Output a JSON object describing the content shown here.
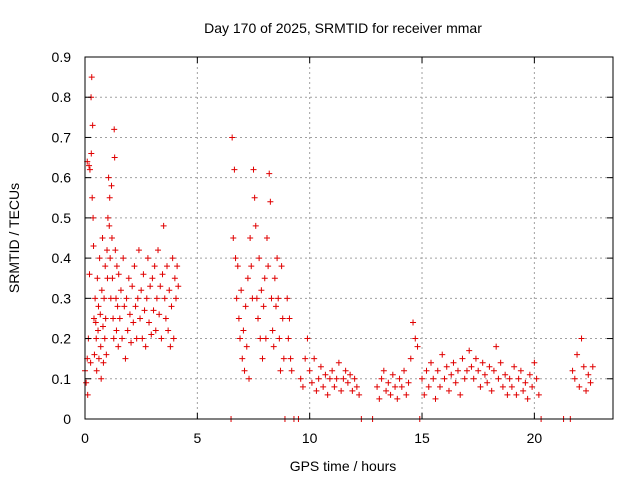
{
  "chart_data": {
    "type": "scatter",
    "title": "Day 170 of 2025, SRMTID for receiver mmar",
    "xlabel": "GPS time / hours",
    "ylabel": "SRMTID / TECUs",
    "xlim": [
      0,
      23.5
    ],
    "ylim": [
      0,
      0.9
    ],
    "xticks": [
      0,
      5,
      10,
      15,
      20
    ],
    "yticks": [
      0,
      0.1,
      0.2,
      0.3,
      0.4,
      0.5,
      0.6,
      0.7,
      0.8,
      0.9
    ],
    "xtick_labels": [
      "0",
      "5",
      "10",
      "15",
      "20"
    ],
    "ytick_labels": [
      "0",
      "0.1",
      "0.2",
      "0.3",
      "0.4",
      "0.5",
      "0.6",
      "0.7",
      "0.8",
      "0.9"
    ],
    "grid": true,
    "marker": "plus",
    "marker_color": "#e00000",
    "series": [
      {
        "points": [
          [
            0.0,
            0.12
          ],
          [
            0.05,
            0.09
          ],
          [
            0.1,
            0.15
          ],
          [
            0.1,
            0.64
          ],
          [
            0.12,
            0.06
          ],
          [
            0.15,
            0.2
          ],
          [
            0.18,
            0.63
          ],
          [
            0.2,
            0.36
          ],
          [
            0.22,
            0.62
          ],
          [
            0.25,
            0.14
          ],
          [
            0.27,
            0.8
          ],
          [
            0.28,
            0.66
          ],
          [
            0.3,
            0.85
          ],
          [
            0.32,
            0.55
          ],
          [
            0.34,
            0.73
          ],
          [
            0.36,
            0.5
          ],
          [
            0.38,
            0.43
          ],
          [
            0.4,
            0.25
          ],
          [
            0.42,
            0.16
          ],
          [
            0.45,
            0.3
          ],
          [
            0.48,
            0.24
          ],
          [
            0.5,
            0.2
          ],
          [
            0.52,
            0.12
          ],
          [
            0.55,
            0.35
          ],
          [
            0.58,
            0.22
          ],
          [
            0.6,
            0.28
          ],
          [
            0.62,
            0.15
          ],
          [
            0.65,
            0.4
          ],
          [
            0.68,
            0.26
          ],
          [
            0.7,
            0.18
          ],
          [
            0.72,
            0.1
          ],
          [
            0.75,
            0.32
          ],
          [
            0.78,
            0.45
          ],
          [
            0.8,
            0.23
          ],
          [
            0.82,
            0.14
          ],
          [
            0.85,
            0.3
          ],
          [
            0.88,
            0.2
          ],
          [
            0.9,
            0.38
          ],
          [
            0.92,
            0.25
          ],
          [
            0.95,
            0.16
          ],
          [
            0.98,
            0.42
          ],
          [
            1.0,
            0.35
          ],
          [
            1.02,
            0.5
          ],
          [
            1.05,
            0.6
          ],
          [
            1.08,
            0.48
          ],
          [
            1.1,
            0.55
          ],
          [
            1.12,
            0.4
          ],
          [
            1.15,
            0.3
          ],
          [
            1.18,
            0.58
          ],
          [
            1.2,
            0.45
          ],
          [
            1.22,
            0.35
          ],
          [
            1.25,
            0.25
          ],
          [
            1.28,
            0.2
          ],
          [
            1.3,
            0.72
          ],
          [
            1.32,
            0.65
          ],
          [
            1.35,
            0.42
          ],
          [
            1.38,
            0.3
          ],
          [
            1.4,
            0.22
          ],
          [
            1.42,
            0.38
          ],
          [
            1.45,
            0.28
          ],
          [
            1.48,
            0.18
          ],
          [
            1.5,
            0.36
          ],
          [
            1.55,
            0.25
          ],
          [
            1.6,
            0.32
          ],
          [
            1.65,
            0.2
          ],
          [
            1.7,
            0.4
          ],
          [
            1.75,
            0.28
          ],
          [
            1.8,
            0.15
          ],
          [
            1.85,
            0.3
          ],
          [
            1.9,
            0.22
          ],
          [
            1.95,
            0.35
          ],
          [
            2.0,
            0.26
          ],
          [
            2.05,
            0.19
          ],
          [
            2.1,
            0.33
          ],
          [
            2.15,
            0.24
          ],
          [
            2.2,
            0.38
          ],
          [
            2.25,
            0.28
          ],
          [
            2.3,
            0.2
          ],
          [
            2.35,
            0.3
          ],
          [
            2.4,
            0.42
          ],
          [
            2.45,
            0.25
          ],
          [
            2.5,
            0.32
          ],
          [
            2.55,
            0.2
          ],
          [
            2.6,
            0.36
          ],
          [
            2.65,
            0.27
          ],
          [
            2.7,
            0.18
          ],
          [
            2.75,
            0.3
          ],
          [
            2.8,
            0.4
          ],
          [
            2.85,
            0.24
          ],
          [
            2.9,
            0.33
          ],
          [
            2.95,
            0.21
          ],
          [
            3.0,
            0.35
          ],
          [
            3.05,
            0.27
          ],
          [
            3.1,
            0.38
          ],
          [
            3.15,
            0.22
          ],
          [
            3.2,
            0.3
          ],
          [
            3.25,
            0.42
          ],
          [
            3.3,
            0.26
          ],
          [
            3.35,
            0.33
          ],
          [
            3.4,
            0.2
          ],
          [
            3.45,
            0.36
          ],
          [
            3.5,
            0.48
          ],
          [
            3.55,
            0.3
          ],
          [
            3.6,
            0.25
          ],
          [
            3.65,
            0.38
          ],
          [
            3.7,
            0.22
          ],
          [
            3.75,
            0.32
          ],
          [
            3.8,
            0.18
          ],
          [
            3.85,
            0.28
          ],
          [
            3.9,
            0.4
          ],
          [
            3.95,
            0.2
          ],
          [
            4.0,
            0.35
          ],
          [
            4.05,
            0.3
          ],
          [
            4.1,
            0.38
          ],
          [
            4.15,
            0.33
          ],
          [
            6.5,
            0.0
          ],
          [
            6.55,
            0.7
          ],
          [
            6.6,
            0.45
          ],
          [
            6.65,
            0.62
          ],
          [
            6.7,
            0.4
          ],
          [
            6.75,
            0.3
          ],
          [
            6.8,
            0.38
          ],
          [
            6.85,
            0.25
          ],
          [
            6.9,
            0.2
          ],
          [
            6.95,
            0.32
          ],
          [
            7.0,
            0.15
          ],
          [
            7.05,
            0.22
          ],
          [
            7.1,
            0.12
          ],
          [
            7.15,
            0.28
          ],
          [
            7.2,
            0.18
          ],
          [
            7.25,
            0.35
          ],
          [
            7.3,
            0.1
          ],
          [
            7.35,
            0.45
          ],
          [
            7.4,
            0.38
          ],
          [
            7.45,
            0.3
          ],
          [
            7.5,
            0.62
          ],
          [
            7.55,
            0.55
          ],
          [
            7.6,
            0.48
          ],
          [
            7.65,
            0.3
          ],
          [
            7.7,
            0.25
          ],
          [
            7.75,
            0.4
          ],
          [
            7.8,
            0.2
          ],
          [
            7.85,
            0.32
          ],
          [
            7.9,
            0.15
          ],
          [
            7.95,
            0.28
          ],
          [
            8.0,
            0.35
          ],
          [
            8.05,
            0.2
          ],
          [
            8.1,
            0.45
          ],
          [
            8.15,
            0.38
          ],
          [
            8.2,
            0.61
          ],
          [
            8.25,
            0.54
          ],
          [
            8.3,
            0.3
          ],
          [
            8.35,
            0.22
          ],
          [
            8.4,
            0.18
          ],
          [
            8.45,
            0.35
          ],
          [
            8.5,
            0.28
          ],
          [
            8.55,
            0.4
          ],
          [
            8.6,
            0.3
          ],
          [
            8.65,
            0.2
          ],
          [
            8.7,
            0.12
          ],
          [
            8.75,
            0.38
          ],
          [
            8.8,
            0.25
          ],
          [
            8.85,
            0.15
          ],
          [
            8.9,
            0.0
          ],
          [
            9.0,
            0.3
          ],
          [
            9.05,
            0.2
          ],
          [
            9.1,
            0.25
          ],
          [
            9.15,
            0.15
          ],
          [
            9.2,
            0.12
          ],
          [
            9.3,
            0.0
          ],
          [
            9.5,
            0.0
          ],
          [
            9.6,
            0.1
          ],
          [
            9.7,
            0.08
          ],
          [
            9.8,
            0.15
          ],
          [
            9.9,
            0.2
          ],
          [
            10.0,
            0.12
          ],
          [
            10.1,
            0.09
          ],
          [
            10.2,
            0.15
          ],
          [
            10.3,
            0.07
          ],
          [
            10.4,
            0.1
          ],
          [
            10.5,
            0.13
          ],
          [
            10.6,
            0.08
          ],
          [
            10.7,
            0.11
          ],
          [
            10.8,
            0.06
          ],
          [
            10.9,
            0.1
          ],
          [
            11.0,
            0.12
          ],
          [
            11.1,
            0.08
          ],
          [
            11.2,
            0.1
          ],
          [
            11.3,
            0.14
          ],
          [
            11.4,
            0.07
          ],
          [
            11.5,
            0.1
          ],
          [
            11.6,
            0.12
          ],
          [
            11.7,
            0.09
          ],
          [
            11.8,
            0.11
          ],
          [
            11.9,
            0.07
          ],
          [
            12.0,
            0.1
          ],
          [
            12.1,
            0.08
          ],
          [
            12.2,
            0.06
          ],
          [
            12.3,
            0.0
          ],
          [
            12.8,
            0.0
          ],
          [
            13.0,
            0.08
          ],
          [
            13.1,
            0.05
          ],
          [
            13.2,
            0.1
          ],
          [
            13.3,
            0.12
          ],
          [
            13.4,
            0.07
          ],
          [
            13.5,
            0.09
          ],
          [
            13.6,
            0.06
          ],
          [
            13.7,
            0.11
          ],
          [
            13.8,
            0.08
          ],
          [
            13.9,
            0.05
          ],
          [
            14.0,
            0.1
          ],
          [
            14.1,
            0.08
          ],
          [
            14.2,
            0.12
          ],
          [
            14.3,
            0.06
          ],
          [
            14.4,
            0.09
          ],
          [
            14.5,
            0.15
          ],
          [
            14.6,
            0.24
          ],
          [
            14.7,
            0.2
          ],
          [
            14.8,
            0.18
          ],
          [
            14.9,
            0.0
          ],
          [
            15.0,
            0.1
          ],
          [
            15.1,
            0.06
          ],
          [
            15.2,
            0.12
          ],
          [
            15.3,
            0.08
          ],
          [
            15.4,
            0.14
          ],
          [
            15.5,
            0.1
          ],
          [
            15.6,
            0.05
          ],
          [
            15.7,
            0.12
          ],
          [
            15.8,
            0.08
          ],
          [
            15.9,
            0.16
          ],
          [
            16.0,
            0.1
          ],
          [
            16.1,
            0.13
          ],
          [
            16.2,
            0.07
          ],
          [
            16.3,
            0.11
          ],
          [
            16.4,
            0.14
          ],
          [
            16.5,
            0.09
          ],
          [
            16.6,
            0.12
          ],
          [
            16.7,
            0.06
          ],
          [
            16.8,
            0.15
          ],
          [
            16.9,
            0.1
          ],
          [
            17.0,
            0.12
          ],
          [
            17.1,
            0.17
          ],
          [
            17.2,
            0.13
          ],
          [
            17.3,
            0.1
          ],
          [
            17.4,
            0.15
          ],
          [
            17.5,
            0.12
          ],
          [
            17.6,
            0.08
          ],
          [
            17.7,
            0.14
          ],
          [
            17.8,
            0.11
          ],
          [
            17.9,
            0.09
          ],
          [
            18.0,
            0.13
          ],
          [
            18.1,
            0.07
          ],
          [
            18.2,
            0.12
          ],
          [
            18.3,
            0.18
          ],
          [
            18.4,
            0.1
          ],
          [
            18.5,
            0.14
          ],
          [
            18.6,
            0.08
          ],
          [
            18.7,
            0.11
          ],
          [
            18.8,
            0.06
          ],
          [
            18.9,
            0.1
          ],
          [
            19.0,
            0.08
          ],
          [
            19.1,
            0.13
          ],
          [
            19.2,
            0.06
          ],
          [
            19.3,
            0.1
          ],
          [
            19.4,
            0.12
          ],
          [
            19.5,
            0.07
          ],
          [
            19.6,
            0.09
          ],
          [
            19.7,
            0.05
          ],
          [
            19.8,
            0.11
          ],
          [
            19.9,
            0.08
          ],
          [
            20.0,
            0.14
          ],
          [
            20.1,
            0.1
          ],
          [
            20.2,
            0.06
          ],
          [
            20.3,
            0.0
          ],
          [
            21.3,
            0.0
          ],
          [
            21.6,
            0.0
          ],
          [
            21.7,
            0.12
          ],
          [
            21.8,
            0.1
          ],
          [
            21.9,
            0.16
          ],
          [
            22.0,
            0.08
          ],
          [
            22.1,
            0.2
          ],
          [
            22.2,
            0.13
          ],
          [
            22.3,
            0.07
          ],
          [
            22.4,
            0.11
          ],
          [
            22.5,
            0.09
          ],
          [
            22.6,
            0.13
          ]
        ]
      }
    ]
  }
}
